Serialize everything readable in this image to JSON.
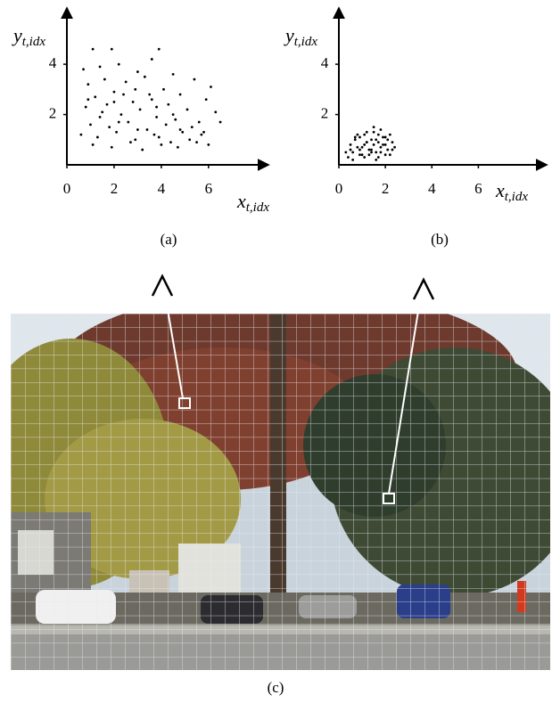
{
  "chart_data": [
    {
      "type": "scatter",
      "caption": "(a)",
      "color": "#000000",
      "xlabel": {
        "base": "x",
        "subscript": "t,idx"
      },
      "ylabel": {
        "base": "y",
        "subscript": "t,idx"
      },
      "xlim": [
        0,
        8.5
      ],
      "ylim": [
        0,
        6.2
      ],
      "xticks": [
        0,
        2,
        4,
        6
      ],
      "yticks": [
        2,
        4
      ],
      "x": [
        1.1,
        1.9,
        3.9,
        0.7,
        1.4,
        2.2,
        3.0,
        3.6,
        4.5,
        5.4,
        6.1,
        0.9,
        1.6,
        2.5,
        3.3,
        4.1,
        4.8,
        5.9,
        1.2,
        2.0,
        2.8,
        3.5,
        4.3,
        5.1,
        6.3,
        0.8,
        1.5,
        2.3,
        3.1,
        3.8,
        4.6,
        5.6,
        6.5,
        1.0,
        1.8,
        2.6,
        3.4,
        4.2,
        4.9,
        5.7,
        0.6,
        1.3,
        2.1,
        2.9,
        3.7,
        4.4,
        5.2,
        6.0,
        1.1,
        1.9,
        2.7,
        3.2,
        4.0,
        4.7,
        5.5,
        0.9,
        1.7,
        2.4,
        3.6,
        4.5,
        5.3,
        1.4,
        2.2,
        3.0,
        3.9,
        4.8,
        5.8,
        2.0,
        2.9,
        3.8
      ],
      "values": [
        4.6,
        4.6,
        4.6,
        3.8,
        3.9,
        4.0,
        3.7,
        4.2,
        3.6,
        3.4,
        3.1,
        3.2,
        3.4,
        3.3,
        3.5,
        3.0,
        2.8,
        2.6,
        2.7,
        2.9,
        2.5,
        2.8,
        2.4,
        2.2,
        2.1,
        2.3,
        2.1,
        2.0,
        2.2,
        1.9,
        1.8,
        1.7,
        1.7,
        1.6,
        1.5,
        1.7,
        1.4,
        1.6,
        1.3,
        1.2,
        1.2,
        1.1,
        1.3,
        1.0,
        1.2,
        0.9,
        1.0,
        0.8,
        0.8,
        0.7,
        0.9,
        0.6,
        0.8,
        0.7,
        0.9,
        2.6,
        2.4,
        2.8,
        2.6,
        2.0,
        1.5,
        1.9,
        1.7,
        1.4,
        1.1,
        1.4,
        1.3,
        2.5,
        3.0,
        2.3
      ]
    },
    {
      "type": "scatter",
      "caption": "(b)",
      "color": "#000000",
      "xlabel": {
        "base": "x",
        "subscript": "t,idx"
      },
      "ylabel": {
        "base": "y",
        "subscript": "t,idx"
      },
      "xlim": [
        0,
        8.9
      ],
      "ylim": [
        0,
        6.2
      ],
      "xticks": [
        0,
        2,
        4,
        6
      ],
      "yticks": [
        2,
        4
      ],
      "x": [
        0.4,
        0.6,
        0.8,
        1.0,
        1.2,
        1.4,
        1.6,
        1.8,
        2.0,
        2.2,
        0.5,
        0.7,
        0.9,
        1.1,
        1.3,
        1.5,
        1.7,
        1.9,
        2.1,
        2.3,
        0.3,
        0.6,
        0.9,
        1.2,
        1.5,
        1.8,
        2.1,
        2.4,
        1.0,
        1.6,
        0.7,
        1.1,
        1.4,
        1.7,
        2.0,
        2.3,
        0.5,
        0.8,
        1.3,
        1.9,
        1.5,
        1.8,
        2.2,
        1.2,
        0.9,
        1.6,
        2.0,
        1.4,
        1.1,
        1.7
      ],
      "values": [
        0.3,
        0.5,
        0.7,
        0.4,
        0.9,
        0.6,
        1.0,
        0.5,
        0.8,
        0.4,
        0.8,
        1.0,
        0.4,
        1.2,
        0.6,
        0.8,
        0.3,
        1.1,
        0.6,
        0.9,
        0.5,
        0.2,
        0.6,
        0.9,
        1.3,
        0.7,
        1.0,
        0.7,
        0.7,
        0.5,
        1.1,
        0.3,
        1.0,
        0.9,
        0.4,
        0.6,
        0.6,
        1.2,
        0.4,
        0.8,
        1.5,
        1.4,
        1.2,
        1.3,
        1.1,
        0.2,
        1.1,
        0.5,
        0.8,
        1.2
      ]
    }
  ],
  "image_caption": "(c)"
}
